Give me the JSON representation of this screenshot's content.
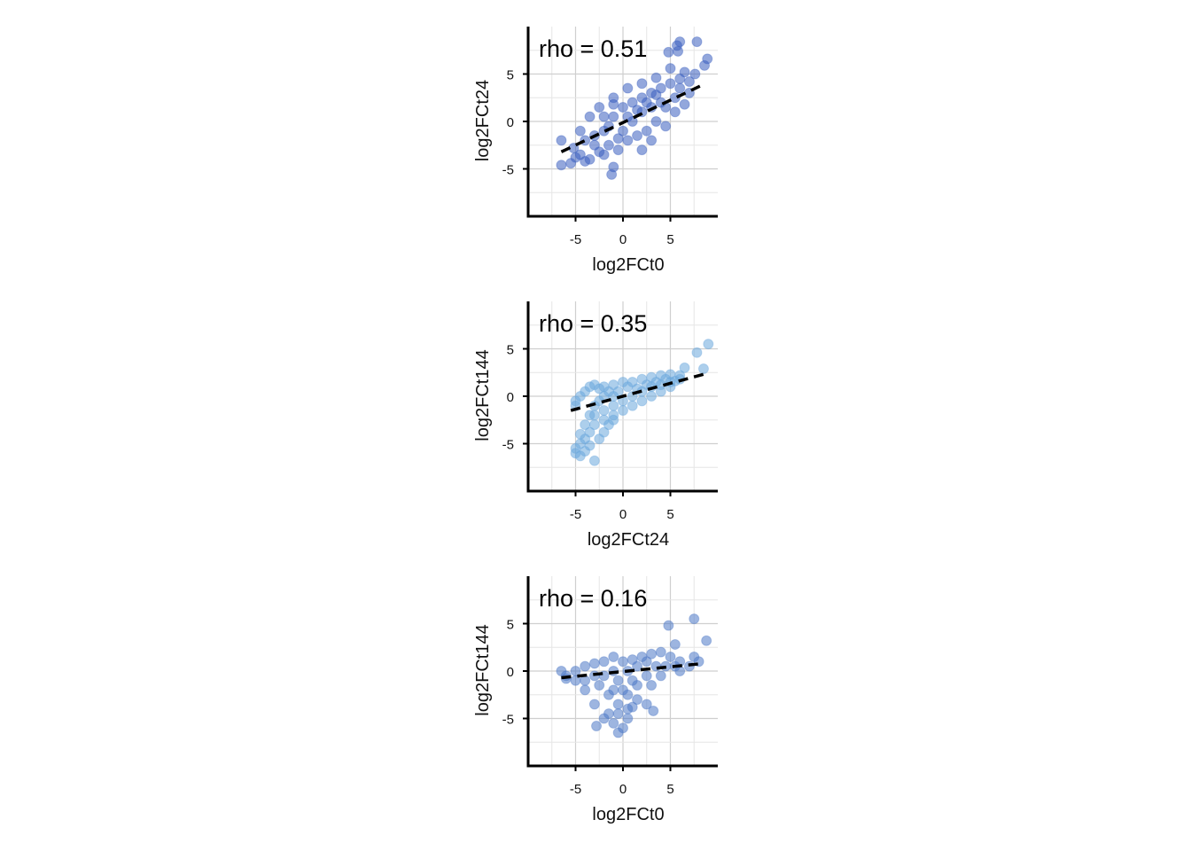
{
  "chart_data": [
    {
      "type": "scatter",
      "xlabel": "log2FCt0",
      "ylabel": "log2FCt24",
      "annotation": "rho = 0.51",
      "xlim": [
        -10,
        10
      ],
      "ylim": [
        -10,
        10
      ],
      "x_ticks": [
        -5,
        0,
        5
      ],
      "y_ticks": [
        -5,
        0,
        5
      ],
      "x_tick_labels": [
        "-5",
        "0",
        "5"
      ],
      "y_tick_labels": [
        "-5",
        "0",
        "5"
      ],
      "grid": true,
      "color": "#3a5fbf",
      "rho": 0.51,
      "trend": {
        "from": [
          -6.5,
          -3.2
        ],
        "to": [
          8.5,
          3.9
        ]
      },
      "points": [
        [
          -6.5,
          -2.0
        ],
        [
          -6.5,
          -4.6
        ],
        [
          -5.5,
          -4.4
        ],
        [
          -5.0,
          -3.8
        ],
        [
          -5.2,
          -2.8
        ],
        [
          -4.5,
          -3.5
        ],
        [
          -4.0,
          -4.2
        ],
        [
          -3.5,
          -4.0
        ],
        [
          -2.0,
          -3.5
        ],
        [
          -1.0,
          -4.8
        ],
        [
          -1.2,
          -5.6
        ],
        [
          2.0,
          -3.0
        ],
        [
          3.0,
          -2.0
        ],
        [
          4.5,
          -0.5
        ],
        [
          5.5,
          1.0
        ],
        [
          6.5,
          1.8
        ],
        [
          7.0,
          3.0
        ],
        [
          7.6,
          5.0
        ],
        [
          6.5,
          5.2
        ],
        [
          5.0,
          5.6
        ],
        [
          4.8,
          7.3
        ],
        [
          5.8,
          7.4
        ],
        [
          5.7,
          8.0
        ],
        [
          6.0,
          8.4
        ],
        [
          7.8,
          8.4
        ],
        [
          8.6,
          5.9
        ],
        [
          8.9,
          6.6
        ],
        [
          3.5,
          4.6
        ],
        [
          2.0,
          4.0
        ],
        [
          0.5,
          3.5
        ],
        [
          -1.0,
          2.5
        ],
        [
          -2.5,
          1.5
        ],
        [
          -3.5,
          0.5
        ],
        [
          -4.5,
          -1.0
        ],
        [
          -4.0,
          -2.0
        ],
        [
          -3.0,
          -2.5
        ],
        [
          -2.0,
          -1.0
        ],
        [
          -1.0,
          0.5
        ],
        [
          0.0,
          1.5
        ],
        [
          1.0,
          2.0
        ],
        [
          2.0,
          2.5
        ],
        [
          3.0,
          3.0
        ],
        [
          4.0,
          3.5
        ],
        [
          5.0,
          4.0
        ],
        [
          6.0,
          4.5
        ],
        [
          7.0,
          4.2
        ],
        [
          -2.5,
          -3.2
        ],
        [
          -1.5,
          -2.5
        ],
        [
          -0.5,
          -3.0
        ],
        [
          0.5,
          -2.0
        ],
        [
          1.5,
          -1.5
        ],
        [
          2.5,
          -1.0
        ],
        [
          3.5,
          0.0
        ],
        [
          4.5,
          1.5
        ],
        [
          5.5,
          2.5
        ],
        [
          6.0,
          3.5
        ],
        [
          -3.0,
          -1.5
        ],
        [
          -2.0,
          0.5
        ],
        [
          -1.0,
          1.8
        ],
        [
          0.0,
          -1.0
        ],
        [
          1.0,
          0.0
        ],
        [
          2.0,
          1.0
        ],
        [
          3.0,
          1.5
        ],
        [
          4.0,
          2.0
        ],
        [
          -1.5,
          -0.5
        ],
        [
          0.5,
          0.5
        ],
        [
          1.5,
          1.2
        ],
        [
          2.5,
          2.0
        ],
        [
          -0.5,
          -1.8
        ],
        [
          3.5,
          2.8
        ]
      ]
    },
    {
      "type": "scatter",
      "xlabel": "log2FCt24",
      "ylabel": "log2FCt144",
      "annotation": "rho = 0.35",
      "xlim": [
        -10,
        10
      ],
      "ylim": [
        -10,
        10
      ],
      "x_ticks": [
        -5,
        0,
        5
      ],
      "y_ticks": [
        -5,
        0,
        5
      ],
      "x_tick_labels": [
        "-5",
        "0",
        "5"
      ],
      "y_tick_labels": [
        "-5",
        "0",
        "5"
      ],
      "grid": true,
      "color": "#6aa7dd",
      "rho": 0.35,
      "trend": {
        "from": [
          -5.5,
          -1.5
        ],
        "to": [
          8.8,
          2.4
        ]
      },
      "points": [
        [
          -5.0,
          -1.0
        ],
        [
          -5.0,
          -0.5
        ],
        [
          -4.5,
          0.0
        ],
        [
          -4.0,
          0.5
        ],
        [
          -3.5,
          1.0
        ],
        [
          -3.0,
          1.2
        ],
        [
          -2.5,
          0.8
        ],
        [
          -2.0,
          1.0
        ],
        [
          -1.0,
          1.2
        ],
        [
          0.0,
          1.5
        ],
        [
          1.0,
          1.5
        ],
        [
          2.0,
          1.8
        ],
        [
          3.0,
          2.0
        ],
        [
          4.0,
          2.2
        ],
        [
          5.0,
          2.3
        ],
        [
          6.0,
          2.2
        ],
        [
          6.5,
          3.0
        ],
        [
          7.8,
          4.6
        ],
        [
          9.0,
          5.5
        ],
        [
          8.5,
          2.9
        ],
        [
          5.0,
          1.0
        ],
        [
          4.0,
          0.5
        ],
        [
          3.0,
          0.0
        ],
        [
          2.0,
          -0.5
        ],
        [
          1.0,
          -1.0
        ],
        [
          0.0,
          -1.5
        ],
        [
          -1.0,
          -2.0
        ],
        [
          -2.0,
          -2.5
        ],
        [
          -3.0,
          -3.0
        ],
        [
          -3.5,
          -3.8
        ],
        [
          -4.0,
          -4.5
        ],
        [
          -4.5,
          -5.0
        ],
        [
          -5.0,
          -5.5
        ],
        [
          -5.0,
          -6.0
        ],
        [
          -4.5,
          -6.3
        ],
        [
          -3.0,
          -6.8
        ],
        [
          -4.0,
          -5.8
        ],
        [
          -3.5,
          -5.2
        ],
        [
          -2.5,
          -4.5
        ],
        [
          -2.0,
          -3.8
        ],
        [
          -1.5,
          -3.0
        ],
        [
          -1.0,
          -2.5
        ],
        [
          -4.5,
          -4.0
        ],
        [
          -4.0,
          -3.0
        ],
        [
          -3.5,
          -2.0
        ],
        [
          -3.0,
          -1.0
        ],
        [
          -2.5,
          -0.5
        ],
        [
          -2.0,
          0.0
        ],
        [
          -1.5,
          0.5
        ],
        [
          -1.0,
          0.0
        ],
        [
          -0.5,
          0.5
        ],
        [
          0.5,
          1.0
        ],
        [
          1.5,
          0.8
        ],
        [
          2.5,
          1.2
        ],
        [
          3.5,
          1.5
        ],
        [
          4.5,
          1.8
        ],
        [
          5.5,
          1.6
        ],
        [
          -3.0,
          -2.0
        ],
        [
          -2.0,
          -1.5
        ],
        [
          -1.0,
          -1.0
        ],
        [
          0.0,
          -0.5
        ],
        [
          1.0,
          0.0
        ],
        [
          2.0,
          0.5
        ],
        [
          3.0,
          1.0
        ],
        [
          4.0,
          1.2
        ],
        [
          5.0,
          1.5
        ],
        [
          6.0,
          1.8
        ]
      ]
    },
    {
      "type": "scatter",
      "xlabel": "log2FCt0",
      "ylabel": "log2FCt144",
      "annotation": "rho = 0.16",
      "xlim": [
        -10,
        10
      ],
      "ylim": [
        -10,
        10
      ],
      "x_ticks": [
        -5,
        0,
        5
      ],
      "y_ticks": [
        -5,
        0,
        5
      ],
      "x_tick_labels": [
        "-5",
        "0",
        "5"
      ],
      "y_tick_labels": [
        "-5",
        "0",
        "5"
      ],
      "grid": true,
      "color": "#4d78c6",
      "rho": 0.16,
      "trend": {
        "from": [
          -6.5,
          -0.7
        ],
        "to": [
          8.5,
          0.8
        ]
      },
      "points": [
        [
          -6.5,
          0.0
        ],
        [
          -6.0,
          -0.5
        ],
        [
          -5.0,
          0.0
        ],
        [
          -4.0,
          0.5
        ],
        [
          -3.0,
          0.8
        ],
        [
          -2.0,
          1.0
        ],
        [
          -1.0,
          1.5
        ],
        [
          0.0,
          1.0
        ],
        [
          1.0,
          1.2
        ],
        [
          2.0,
          1.5
        ],
        [
          3.0,
          1.8
        ],
        [
          4.0,
          2.0
        ],
        [
          5.0,
          1.5
        ],
        [
          6.0,
          1.0
        ],
        [
          7.0,
          0.5
        ],
        [
          7.5,
          1.5
        ],
        [
          8.0,
          1.0
        ],
        [
          5.5,
          2.8
        ],
        [
          4.8,
          4.8
        ],
        [
          7.5,
          5.5
        ],
        [
          8.8,
          3.2
        ],
        [
          6.0,
          0.0
        ],
        [
          4.0,
          -0.5
        ],
        [
          3.0,
          -1.5
        ],
        [
          3.2,
          -4.2
        ],
        [
          2.5,
          -3.5
        ],
        [
          1.5,
          -3.0
        ],
        [
          1.0,
          -3.8
        ],
        [
          0.5,
          -5.0
        ],
        [
          0.0,
          -6.0
        ],
        [
          -0.5,
          -6.5
        ],
        [
          -1.0,
          -5.5
        ],
        [
          -2.0,
          -5.0
        ],
        [
          -2.8,
          -5.8
        ],
        [
          -1.5,
          -4.5
        ],
        [
          -3.0,
          -3.5
        ],
        [
          -4.0,
          -2.0
        ],
        [
          -5.0,
          -1.0
        ],
        [
          -6.0,
          -0.8
        ],
        [
          -2.5,
          -1.5
        ],
        [
          -1.5,
          -2.5
        ],
        [
          -0.5,
          -3.5
        ],
        [
          0.5,
          -2.5
        ],
        [
          1.5,
          -1.5
        ],
        [
          2.5,
          -0.5
        ],
        [
          -0.5,
          -1.0
        ],
        [
          0.5,
          0.0
        ],
        [
          1.5,
          0.5
        ],
        [
          2.5,
          1.0
        ],
        [
          -1.0,
          0.0
        ],
        [
          -2.0,
          -0.5
        ],
        [
          -3.0,
          -0.5
        ],
        [
          -4.0,
          -1.0
        ],
        [
          3.5,
          0.5
        ],
        [
          4.5,
          0.5
        ],
        [
          5.5,
          0.5
        ],
        [
          -1.0,
          -2.0
        ],
        [
          0.0,
          -2.0
        ],
        [
          1.0,
          -1.0
        ],
        [
          -0.5,
          -4.5
        ],
        [
          0.5,
          -4.0
        ]
      ]
    }
  ]
}
